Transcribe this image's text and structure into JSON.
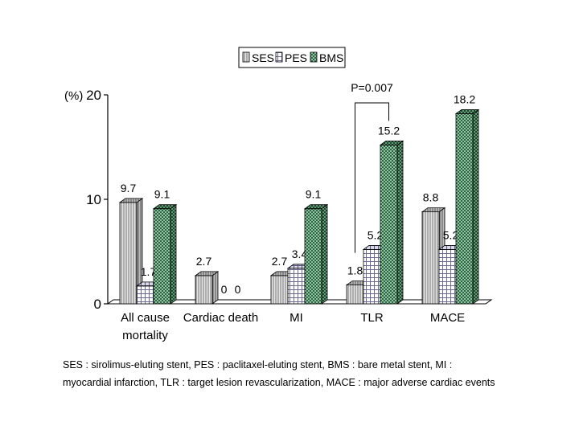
{
  "chart_data": {
    "type": "bar",
    "ylabel": "(%)",
    "ylim": [
      0,
      20
    ],
    "yticks": [
      0,
      10,
      20
    ],
    "legend_position": "top-center",
    "categories": [
      [
        "All cause",
        "mortality"
      ],
      [
        "Cardiac death"
      ],
      [
        "MI"
      ],
      [
        "TLR"
      ],
      [
        "MACE"
      ]
    ],
    "series": [
      {
        "name": "SES",
        "values": [
          9.7,
          2.7,
          2.7,
          1.8,
          8.8
        ],
        "labels": [
          "9.7",
          "2.7",
          "2.7",
          "1.8",
          "8.8"
        ],
        "pattern": "vertical-stripes",
        "color": "#a0a0a0"
      },
      {
        "name": "PES",
        "values": [
          1.7,
          0,
          3.4,
          5.2,
          5.2
        ],
        "labels": [
          "1.7",
          "0",
          "3.4",
          "5.2",
          "5.2"
        ],
        "pattern": "grid",
        "color": "#8a8a8a"
      },
      {
        "name": "BMS",
        "values": [
          9.1,
          0,
          9.1,
          15.2,
          18.2
        ],
        "labels": [
          "9.1",
          "0",
          "9.1",
          "15.2",
          "18.2"
        ],
        "pattern": "crosshatch",
        "color": "#2e8b57"
      }
    ],
    "annotation": {
      "text": "P=0.007",
      "category_index": 3,
      "from_series": 0,
      "to_series": 2
    },
    "grid": false
  },
  "footnote": {
    "line1": "SES : sirolimus-eluting stent, PES : paclitaxel-eluting stent, BMS : bare metal stent, MI :",
    "line2": "myocardial infarction, TLR : target lesion revascularization, MACE : major adverse cardiac events"
  }
}
